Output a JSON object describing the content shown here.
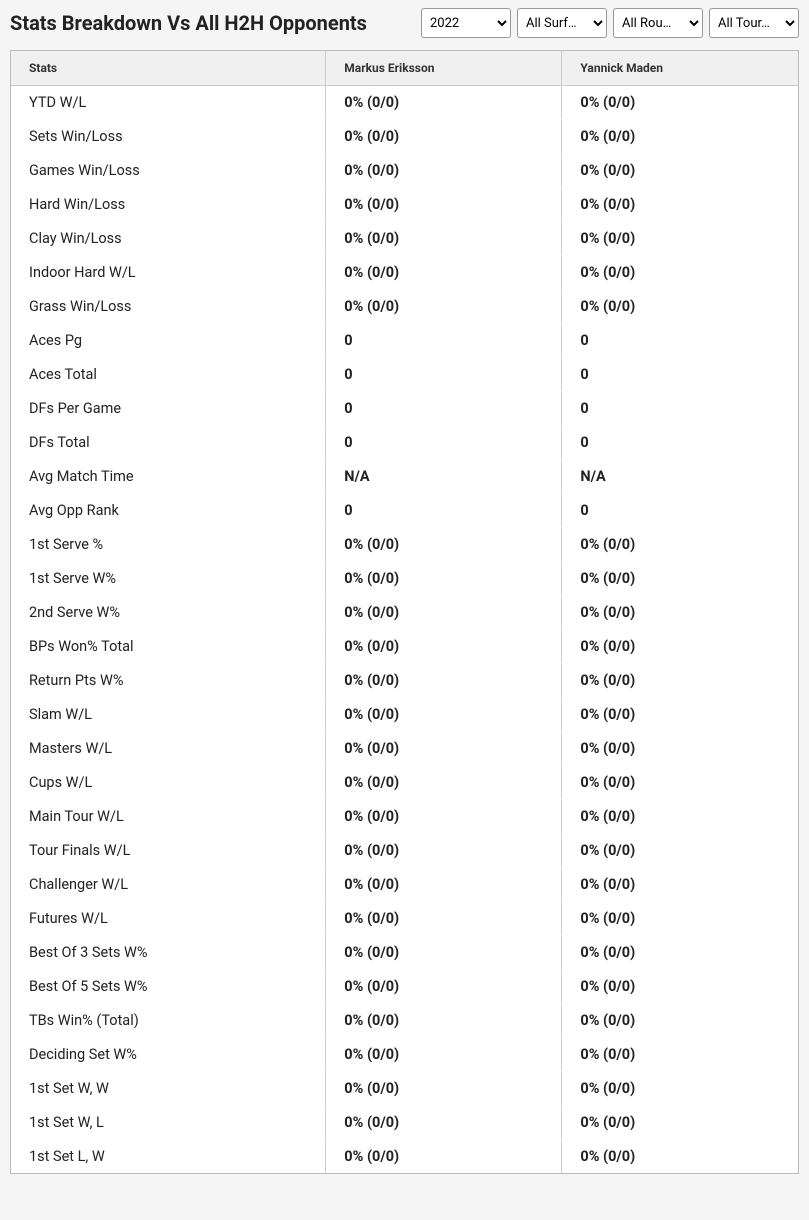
{
  "header": {
    "title": "Stats Breakdown Vs All H2H Opponents"
  },
  "filters": {
    "year": {
      "selected": "2022"
    },
    "surface": {
      "selected": "All Surf…"
    },
    "round": {
      "selected": "All Rou…"
    },
    "tour": {
      "selected": "All Tour…"
    }
  },
  "table": {
    "columns": [
      "Stats",
      "Markus Eriksson",
      "Yannick Maden"
    ],
    "rows": [
      [
        "YTD W/L",
        "0% (0/0)",
        "0% (0/0)"
      ],
      [
        "Sets Win/Loss",
        "0% (0/0)",
        "0% (0/0)"
      ],
      [
        "Games Win/Loss",
        "0% (0/0)",
        "0% (0/0)"
      ],
      [
        "Hard Win/Loss",
        "0% (0/0)",
        "0% (0/0)"
      ],
      [
        "Clay Win/Loss",
        "0% (0/0)",
        "0% (0/0)"
      ],
      [
        "Indoor Hard W/L",
        "0% (0/0)",
        "0% (0/0)"
      ],
      [
        "Grass Win/Loss",
        "0% (0/0)",
        "0% (0/0)"
      ],
      [
        "Aces Pg",
        "0",
        "0"
      ],
      [
        "Aces Total",
        "0",
        "0"
      ],
      [
        "DFs Per Game",
        "0",
        "0"
      ],
      [
        "DFs Total",
        "0",
        "0"
      ],
      [
        "Avg Match Time",
        "N/A",
        "N/A"
      ],
      [
        "Avg Opp Rank",
        "0",
        "0"
      ],
      [
        "1st Serve %",
        "0% (0/0)",
        "0% (0/0)"
      ],
      [
        "1st Serve W%",
        "0% (0/0)",
        "0% (0/0)"
      ],
      [
        "2nd Serve W%",
        "0% (0/0)",
        "0% (0/0)"
      ],
      [
        "BPs Won% Total",
        "0% (0/0)",
        "0% (0/0)"
      ],
      [
        "Return Pts W%",
        "0% (0/0)",
        "0% (0/0)"
      ],
      [
        "Slam W/L",
        "0% (0/0)",
        "0% (0/0)"
      ],
      [
        "Masters W/L",
        "0% (0/0)",
        "0% (0/0)"
      ],
      [
        "Cups W/L",
        "0% (0/0)",
        "0% (0/0)"
      ],
      [
        "Main Tour W/L",
        "0% (0/0)",
        "0% (0/0)"
      ],
      [
        "Tour Finals W/L",
        "0% (0/0)",
        "0% (0/0)"
      ],
      [
        "Challenger W/L",
        "0% (0/0)",
        "0% (0/0)"
      ],
      [
        "Futures W/L",
        "0% (0/0)",
        "0% (0/0)"
      ],
      [
        "Best Of 3 Sets W%",
        "0% (0/0)",
        "0% (0/0)"
      ],
      [
        "Best Of 5 Sets W%",
        "0% (0/0)",
        "0% (0/0)"
      ],
      [
        "TBs Win% (Total)",
        "0% (0/0)",
        "0% (0/0)"
      ],
      [
        "Deciding Set W%",
        "0% (0/0)",
        "0% (0/0)"
      ],
      [
        "1st Set W, W",
        "0% (0/0)",
        "0% (0/0)"
      ],
      [
        "1st Set W, L",
        "0% (0/0)",
        "0% (0/0)"
      ],
      [
        "1st Set L, W",
        "0% (0/0)",
        "0% (0/0)"
      ]
    ],
    "styling": {
      "header_bg": "#f0f0f0",
      "border_color": "#cccccc",
      "outer_border": "#bbbbbb",
      "header_font_size": 12,
      "cell_font_size": 14.5,
      "value_font_weight": 700,
      "label_font_weight": 400,
      "text_color": "#222222",
      "page_bg": "#f5f5f5"
    }
  }
}
